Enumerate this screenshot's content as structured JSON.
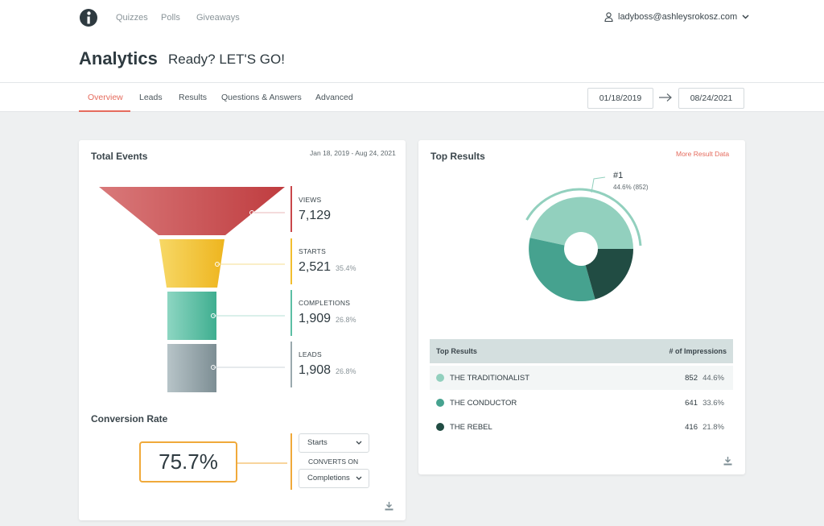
{
  "nav": {
    "links": [
      "Quizzes",
      "Polls",
      "Giveaways"
    ],
    "user_email": "ladyboss@ashleysrokosz.com"
  },
  "header": {
    "title": "Analytics",
    "subtitle": "Ready? LET'S GO!"
  },
  "tabs": [
    "Overview",
    "Leads",
    "Results",
    "Questions & Answers",
    "Advanced"
  ],
  "date_range": {
    "start": "01/18/2019",
    "end": "08/24/2021"
  },
  "total_events": {
    "title": "Total Events",
    "range": "Jan 18, 2019 - Aug 24, 2021",
    "stages": [
      {
        "label": "VIEWS",
        "value": "7,129",
        "pct": ""
      },
      {
        "label": "STARTS",
        "value": "2,521",
        "pct": "35.4%"
      },
      {
        "label": "COMPLETIONS",
        "value": "1,909",
        "pct": "26.8%"
      },
      {
        "label": "LEADS",
        "value": "1,908",
        "pct": "26.8%"
      }
    ],
    "colors": [
      "#c9474a",
      "#f2be2f",
      "#5cbfa4",
      "#9aa9ae"
    ]
  },
  "conversion": {
    "title": "Conversion Rate",
    "value": "75.7%",
    "from": "Starts",
    "converts_label": "CONVERTS ON",
    "to": "Completions"
  },
  "top_results": {
    "title": "Top Results",
    "more_link": "More Result Data",
    "callout_rank": "#1",
    "callout_detail": "44.6% (852)",
    "table_header_left": "Top Results",
    "table_header_right": "# of Impressions",
    "rows": [
      {
        "name": "THE TRADITIONALIST",
        "count": "852",
        "pct": "44.6%",
        "color": "#92d0be"
      },
      {
        "name": "THE CONDUCTOR",
        "count": "641",
        "pct": "33.6%",
        "color": "#46a28f"
      },
      {
        "name": "THE REBEL",
        "count": "416",
        "pct": "21.8%",
        "color": "#214c43"
      }
    ]
  },
  "icons": [
    "logo-icon",
    "user-icon",
    "chevron-down-icon",
    "arrow-right-icon",
    "download-icon"
  ]
}
